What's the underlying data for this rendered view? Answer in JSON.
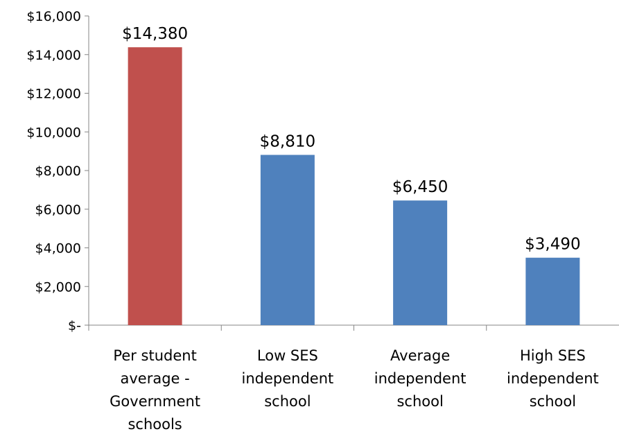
{
  "chart_data": {
    "type": "bar",
    "title": "",
    "xlabel": "",
    "ylabel": "",
    "grid": false,
    "legend": "none",
    "ylim": [
      0,
      16000
    ],
    "ytick_values": [
      0,
      2000,
      4000,
      6000,
      8000,
      10000,
      12000,
      14000,
      16000
    ],
    "ytick_labels": [
      "$-",
      "$2,000",
      "$4,000",
      "$6,000",
      "$8,000",
      "$10,000",
      "$12,000",
      "$14,000",
      "$16,000"
    ],
    "categories": [
      [
        "Per student",
        "average -",
        "Government",
        "schools"
      ],
      [
        "Low SES",
        "independent",
        "school"
      ],
      [
        "Average",
        "independent",
        "school"
      ],
      [
        "High SES",
        "independent",
        "school"
      ]
    ],
    "values": [
      14380,
      8810,
      6450,
      3490
    ],
    "data_labels": [
      "$14,380",
      "$8,810",
      "$6,450",
      "$3,490"
    ],
    "colors": [
      "#C0504D",
      "#4F81BD",
      "#4F81BD",
      "#4F81BD"
    ],
    "axis_color": "#868686"
  }
}
